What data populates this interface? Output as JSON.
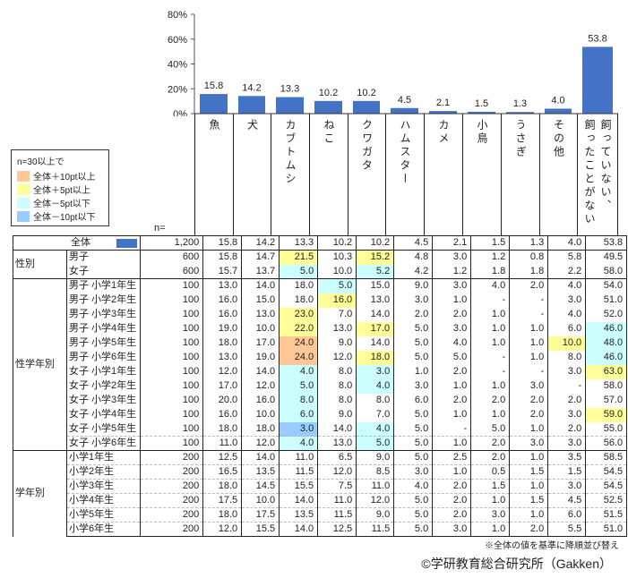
{
  "chart_data": {
    "type": "bar",
    "categories": [
      "魚",
      "犬",
      "カブトムシ",
      "ねこ",
      "クワガタ",
      "ハムスター",
      "カメ",
      "小鳥",
      "うさぎ",
      "その他",
      "飼っていない、飼ったことがない"
    ],
    "values": [
      15.8,
      14.2,
      13.3,
      10.2,
      10.2,
      4.5,
      2.1,
      1.5,
      1.3,
      4.0,
      53.8
    ],
    "value_labels": [
      "15.8",
      "14.2",
      "13.3",
      "10.2",
      "10.2",
      "4.5",
      "2.1",
      "1.5",
      "1.3",
      "4.0",
      "53.8"
    ],
    "ylim": [
      0,
      80
    ],
    "yticks": [
      "0%",
      "20%",
      "40%",
      "60%",
      "80%"
    ],
    "bar_color": "#4472C4",
    "header_lines": [
      [
        "魚"
      ],
      [
        "犬"
      ],
      [
        "カブトムシ"
      ],
      [
        "ねこ"
      ],
      [
        "クワガタ"
      ],
      [
        "ハムスター"
      ],
      [
        "カメ"
      ],
      [
        "小鳥"
      ],
      [
        "うさぎ"
      ],
      [
        "その他"
      ],
      [
        "飼っていない、",
        "飼ったことがない"
      ]
    ]
  },
  "legend": {
    "title": "n=30以上で",
    "items": [
      {
        "label": "全体＋10pt以上",
        "color": "#FFC896"
      },
      {
        "label": "全体＋5pt以上",
        "color": "#FFFF99"
      },
      {
        "label": "全体－5pt以下",
        "color": "#CCFFFF"
      },
      {
        "label": "全体－10pt以下",
        "color": "#99CCFF"
      }
    ]
  },
  "n_label": "n=",
  "table": {
    "total": {
      "label": "全体",
      "n": "1,200",
      "values": [
        "15.8",
        "14.2",
        "13.3",
        "10.2",
        "10.2",
        "4.5",
        "2.1",
        "1.5",
        "1.3",
        "4.0",
        "53.8"
      ],
      "hl": "..........."
    },
    "sections": [
      {
        "label": "性別",
        "rows": [
          {
            "label": "男子",
            "n": "600",
            "values": [
              "15.8",
              "14.7",
              "21.5",
              "10.3",
              "15.2",
              "4.8",
              "3.0",
              "1.2",
              "0.8",
              "5.8",
              "49.5"
            ],
            "hl": "..y.y......"
          },
          {
            "label": "女子",
            "n": "600",
            "values": [
              "15.7",
              "13.7",
              "5.0",
              "10.0",
              "5.2",
              "4.2",
              "1.2",
              "1.8",
              "1.8",
              "2.2",
              "58.0"
            ],
            "hl": "..c.c......"
          }
        ]
      },
      {
        "label": "性学年別",
        "rows": [
          {
            "label": "男子  小学1年生",
            "n": "100",
            "values": [
              "13.0",
              "14.0",
              "18.0",
              "5.0",
              "15.0",
              "9.0",
              "3.0",
              "4.0",
              "2.0",
              "4.0",
              "54.0"
            ],
            "hl": "...c......."
          },
          {
            "label": "男子  小学2年生",
            "n": "100",
            "values": [
              "16.0",
              "15.0",
              "18.0",
              "16.0",
              "13.0",
              "3.0",
              "1.0",
              "-",
              "-",
              "3.0",
              "51.0"
            ],
            "hl": "...y......."
          },
          {
            "label": "男子  小学3年生",
            "n": "100",
            "values": [
              "16.0",
              "13.0",
              "23.0",
              "7.0",
              "14.0",
              "2.0",
              "2.0",
              "1.0",
              "-",
              "4.0",
              "52.0"
            ],
            "hl": "..y........"
          },
          {
            "label": "男子  小学4年生",
            "n": "100",
            "values": [
              "19.0",
              "10.0",
              "22.0",
              "13.0",
              "17.0",
              "5.0",
              "3.0",
              "1.0",
              "1.0",
              "6.0",
              "46.0"
            ],
            "hl": "..y.y.....c"
          },
          {
            "label": "男子  小学5年生",
            "n": "100",
            "values": [
              "18.0",
              "17.0",
              "24.0",
              "9.0",
              "14.0",
              "5.0",
              "4.0",
              "1.0",
              "1.0",
              "10.0",
              "48.0"
            ],
            "hl": "..o......yc"
          },
          {
            "label": "男子  小学6年生",
            "n": "100",
            "values": [
              "13.0",
              "19.0",
              "24.0",
              "12.0",
              "18.0",
              "5.0",
              "5.0",
              "-",
              "1.0",
              "8.0",
              "46.0"
            ],
            "hl": "..o.y.....c"
          },
          {
            "label": "女子  小学1年生",
            "n": "100",
            "values": [
              "12.0",
              "14.0",
              "4.0",
              "8.0",
              "3.0",
              "1.0",
              "2.0",
              "-",
              "-",
              "3.0",
              "63.0"
            ],
            "hl": "..c.c.....y"
          },
          {
            "label": "女子  小学2年生",
            "n": "100",
            "values": [
              "17.0",
              "12.0",
              "5.0",
              "8.0",
              "4.0",
              "3.0",
              "1.0",
              "1.0",
              "3.0",
              "-",
              "58.0"
            ],
            "hl": "..c.c......"
          },
          {
            "label": "女子  小学3年生",
            "n": "100",
            "values": [
              "20.0",
              "16.0",
              "8.0",
              "8.0",
              "8.0",
              "6.0",
              "2.0",
              "2.0",
              "2.0",
              "2.0",
              "57.0"
            ],
            "hl": "..c........"
          },
          {
            "label": "女子  小学4年生",
            "n": "100",
            "values": [
              "16.0",
              "10.0",
              "6.0",
              "9.0",
              "7.0",
              "5.0",
              "1.0",
              "1.0",
              "2.0",
              "3.0",
              "59.0"
            ],
            "hl": "..c.......y"
          },
          {
            "label": "女子  小学5年生",
            "n": "100",
            "values": [
              "18.0",
              "18.0",
              "3.0",
              "14.0",
              "4.0",
              "5.0",
              "-",
              "5.0",
              "1.0",
              "2.0",
              "55.0"
            ],
            "hl": "..b.c......"
          },
          {
            "label": "女子  小学6年生",
            "n": "100",
            "values": [
              "11.0",
              "12.0",
              "4.0",
              "13.0",
              "5.0",
              "5.0",
              "1.0",
              "2.0",
              "3.0",
              "3.0",
              "56.0"
            ],
            "hl": "..c.c......"
          }
        ]
      },
      {
        "label": "学年別",
        "rows": [
          {
            "label": "小学1年生",
            "n": "200",
            "values": [
              "12.5",
              "14.0",
              "11.0",
              "6.5",
              "9.0",
              "5.0",
              "2.5",
              "2.0",
              "1.0",
              "3.5",
              "58.5"
            ],
            "hl": "..........."
          },
          {
            "label": "小学2年生",
            "n": "200",
            "values": [
              "16.5",
              "13.5",
              "11.5",
              "12.0",
              "8.5",
              "3.0",
              "1.0",
              "0.5",
              "1.5",
              "1.5",
              "54.5"
            ],
            "hl": "..........."
          },
          {
            "label": "小学3年生",
            "n": "200",
            "values": [
              "18.0",
              "14.5",
              "15.5",
              "7.5",
              "11.0",
              "4.0",
              "2.0",
              "1.5",
              "1.0",
              "3.0",
              "54.5"
            ],
            "hl": "..........."
          },
          {
            "label": "小学4年生",
            "n": "200",
            "values": [
              "17.5",
              "10.0",
              "14.0",
              "11.0",
              "12.0",
              "5.0",
              "2.0",
              "1.0",
              "1.5",
              "4.5",
              "52.5"
            ],
            "hl": "..........."
          },
          {
            "label": "小学5年生",
            "n": "200",
            "values": [
              "18.0",
              "17.5",
              "13.5",
              "11.5",
              "9.0",
              "5.0",
              "2.0",
              "3.0",
              "1.0",
              "6.0",
              "51.5"
            ],
            "hl": "..........."
          },
          {
            "label": "小学6年生",
            "n": "200",
            "values": [
              "12.0",
              "15.5",
              "14.0",
              "12.5",
              "11.5",
              "5.0",
              "3.0",
              "1.0",
              "2.0",
              "5.5",
              "51.0"
            ],
            "hl": "..........."
          }
        ]
      }
    ]
  },
  "note": "※全体の値を基準に降順並び替え",
  "credit": "©学研教育総合研究所（Gakken）"
}
